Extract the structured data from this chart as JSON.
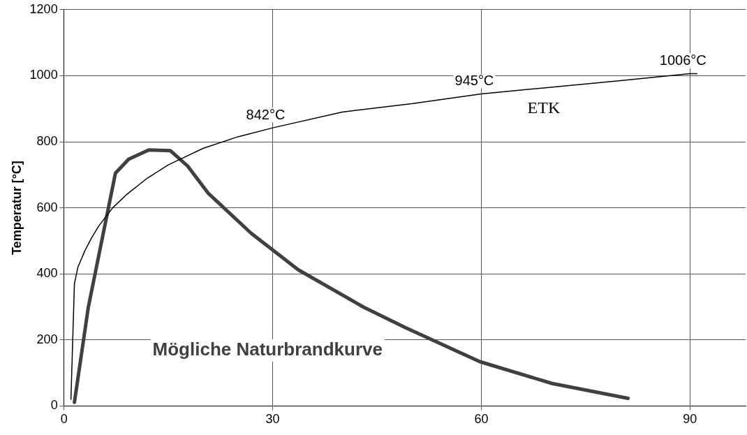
{
  "chart_data": {
    "type": "line",
    "ylabel": "Temperatur [°C]",
    "series": [
      {
        "name": "ETK",
        "color": "#000000",
        "x": [
          1,
          1.5,
          2,
          3,
          4,
          5,
          7,
          9,
          12,
          15,
          20,
          25,
          30,
          40,
          50,
          60,
          70,
          80,
          90,
          91
        ],
        "values": [
          20,
          370,
          420,
          470,
          510,
          545,
          600,
          640,
          690,
          730,
          780,
          815,
          842,
          890,
          915,
          945,
          965,
          985,
          1006,
          1006
        ]
      },
      {
        "name": "Mögliche Naturbrandkurve",
        "color": "#404040",
        "x": [
          1.5,
          3.5,
          7.4,
          9.3,
          12.2,
          15.3,
          17.8,
          20.7,
          26.9,
          33.7,
          43.1,
          49.1,
          59.8,
          70.2,
          81.1
        ],
        "values": [
          11,
          299,
          705,
          747,
          775,
          773,
          726,
          645,
          523,
          412,
          299,
          237,
          134,
          68,
          23
        ]
      }
    ],
    "xlim": [
      0,
      98
    ],
    "xticks": [
      0,
      30,
      60,
      90
    ],
    "ylim": [
      0,
      1200
    ],
    "yticks": [
      0,
      200,
      400,
      600,
      800,
      1000,
      1200
    ],
    "grid": true,
    "legend": false,
    "marker": "none",
    "line_style": "solid",
    "annotations": [
      {
        "text": "842°C",
        "x": 30,
        "y": 842
      },
      {
        "text": "945°C",
        "x": 60,
        "y": 945
      },
      {
        "text": "1006°C",
        "x": 90,
        "y": 1006
      }
    ]
  }
}
